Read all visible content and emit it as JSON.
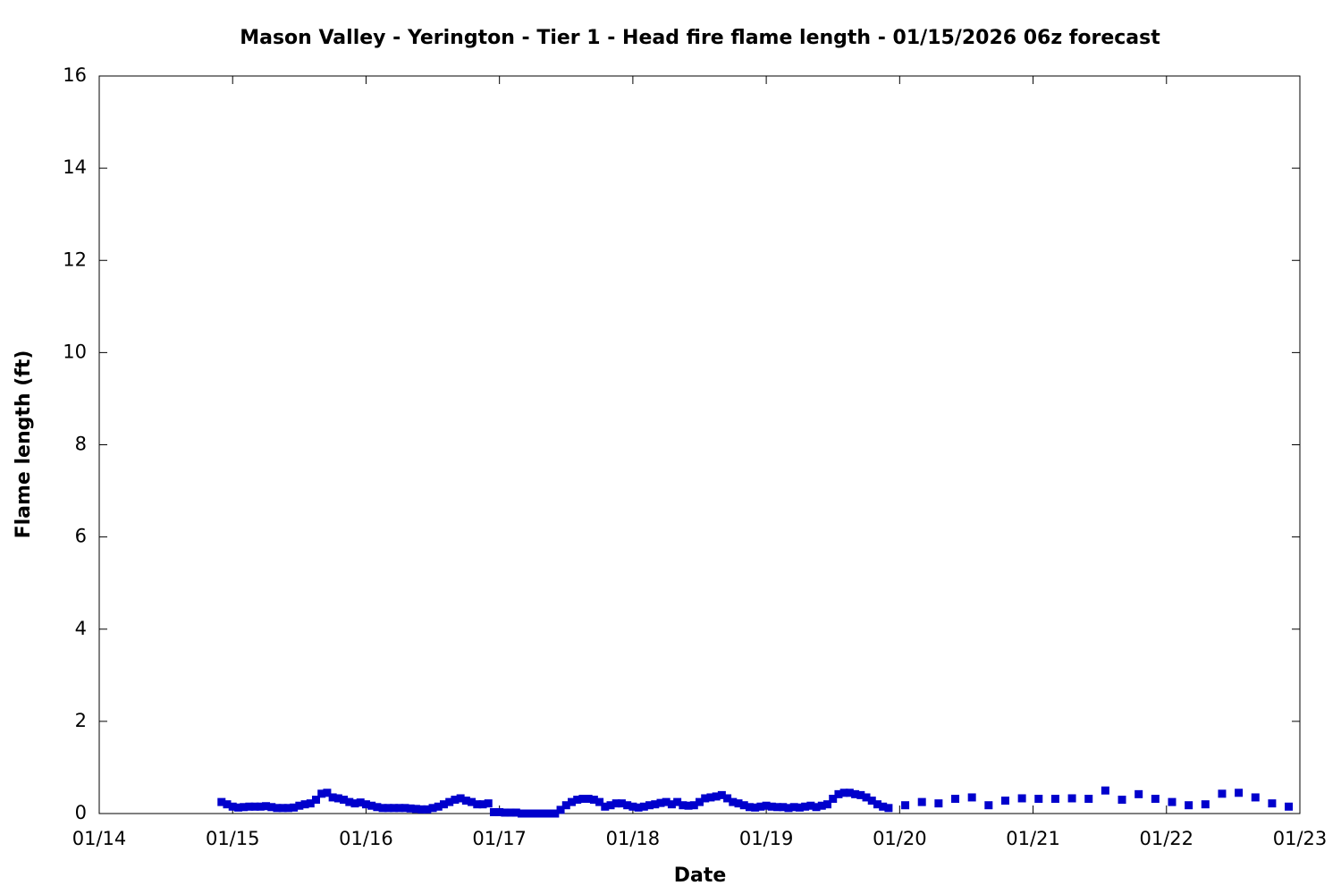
{
  "chart_data": {
    "type": "scatter",
    "title": "Mason Valley - Yerington - Tier 1 - Head fire flame length - 01/15/2026 06z forecast",
    "xlabel": "Date",
    "ylabel": "Flame length (ft)",
    "xlim": [
      0,
      216
    ],
    "xticks": [
      {
        "value": 0,
        "label": "01/14"
      },
      {
        "value": 24,
        "label": "01/15"
      },
      {
        "value": 48,
        "label": "01/16"
      },
      {
        "value": 72,
        "label": "01/17"
      },
      {
        "value": 96,
        "label": "01/18"
      },
      {
        "value": 120,
        "label": "01/19"
      },
      {
        "value": 144,
        "label": "01/20"
      },
      {
        "value": 168,
        "label": "01/21"
      },
      {
        "value": 192,
        "label": "01/22"
      },
      {
        "value": 216,
        "label": "01/23"
      }
    ],
    "ylim": [
      0,
      16
    ],
    "yticks": [
      0,
      2,
      4,
      6,
      8,
      10,
      12,
      14,
      16
    ],
    "grid": false,
    "x": [
      22,
      23,
      24,
      25,
      26,
      27,
      28,
      29,
      30,
      31,
      32,
      33,
      34,
      35,
      36,
      37,
      38,
      39,
      40,
      41,
      42,
      43,
      44,
      45,
      46,
      47,
      48,
      49,
      50,
      51,
      52,
      53,
      54,
      55,
      56,
      57,
      58,
      59,
      60,
      61,
      62,
      63,
      64,
      65,
      66,
      67,
      68,
      69,
      70,
      71,
      72,
      73,
      74,
      75,
      76,
      77,
      78,
      79,
      80,
      81,
      82,
      83,
      84,
      85,
      86,
      87,
      88,
      89,
      90,
      91,
      92,
      93,
      94,
      95,
      96,
      97,
      98,
      99,
      100,
      101,
      102,
      103,
      104,
      105,
      106,
      107,
      108,
      109,
      110,
      111,
      112,
      113,
      114,
      115,
      116,
      117,
      118,
      119,
      120,
      121,
      122,
      123,
      124,
      125,
      126,
      127,
      128,
      129,
      130,
      131,
      132,
      133,
      134,
      135,
      136,
      137,
      138,
      139,
      140,
      141,
      142,
      145,
      148,
      151,
      154,
      157,
      160,
      163,
      166,
      169,
      172,
      175,
      178,
      181,
      184,
      187,
      190,
      193,
      196,
      199,
      202,
      205,
      208,
      211,
      214
    ],
    "series": [
      {
        "color": "#0000cc",
        "values": [
          0.25,
          0.2,
          0.15,
          0.13,
          0.14,
          0.15,
          0.15,
          0.15,
          0.16,
          0.14,
          0.12,
          0.12,
          0.12,
          0.13,
          0.17,
          0.2,
          0.22,
          0.3,
          0.43,
          0.45,
          0.35,
          0.33,
          0.3,
          0.25,
          0.22,
          0.24,
          0.2,
          0.17,
          0.14,
          0.12,
          0.12,
          0.12,
          0.12,
          0.12,
          0.11,
          0.1,
          0.09,
          0.09,
          0.12,
          0.15,
          0.2,
          0.25,
          0.3,
          0.33,
          0.28,
          0.25,
          0.2,
          0.2,
          0.22,
          0.03,
          0.03,
          0.02,
          0.02,
          0.02,
          0,
          0,
          0,
          0,
          0,
          0,
          0,
          0.08,
          0.18,
          0.25,
          0.3,
          0.32,
          0.32,
          0.3,
          0.25,
          0.15,
          0.18,
          0.22,
          0.22,
          0.18,
          0.15,
          0.13,
          0.15,
          0.18,
          0.2,
          0.23,
          0.25,
          0.2,
          0.25,
          0.18,
          0.17,
          0.18,
          0.25,
          0.33,
          0.35,
          0.37,
          0.4,
          0.33,
          0.25,
          0.22,
          0.18,
          0.14,
          0.13,
          0.15,
          0.17,
          0.15,
          0.14,
          0.14,
          0.12,
          0.14,
          0.13,
          0.15,
          0.17,
          0.14,
          0.17,
          0.2,
          0.32,
          0.42,
          0.45,
          0.45,
          0.42,
          0.4,
          0.35,
          0.28,
          0.2,
          0.15,
          0.12,
          0.18,
          0.25,
          0.22,
          0.32,
          0.35,
          0.18,
          0.28,
          0.33,
          0.32,
          0.32,
          0.33,
          0.32,
          0.5,
          0.3,
          0.42,
          0.32,
          0.25,
          0.18,
          0.2,
          0.43,
          0.45,
          0.35,
          0.22,
          0.15
        ]
      }
    ]
  }
}
